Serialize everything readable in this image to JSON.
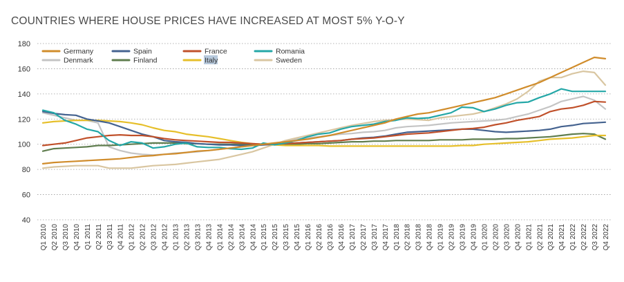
{
  "chart_data": {
    "type": "line",
    "title": "COUNTRIES WHERE HOUSE PRICES HAVE INCREASED AT MOST 5% Y-O-Y",
    "xlabel": "",
    "ylabel": "",
    "ylim": [
      40,
      180
    ],
    "yticks": [
      40,
      60,
      80,
      100,
      120,
      140,
      160,
      180
    ],
    "grid": "horizontal dotted",
    "legend_position": "top-left",
    "categories": [
      "Q1 2010",
      "Q2 2010",
      "Q3 2010",
      "Q4 2010",
      "Q1 2011",
      "Q2 2011",
      "Q3 2011",
      "Q4 2011",
      "Q1 2012",
      "Q2 2012",
      "Q3 2012",
      "Q4 2012",
      "Q1 2013",
      "Q2 2013",
      "Q3 2013",
      "Q4 2013",
      "Q1 2014",
      "Q2 2014",
      "Q3 2014",
      "Q4 2014",
      "Q1 2015",
      "Q2 2015",
      "Q3 2015",
      "Q4 2015",
      "Q1 2016",
      "Q2 2016",
      "Q3 2016",
      "Q4 2016",
      "Q1 2017",
      "Q2 2017",
      "Q3 2017",
      "Q4 2017",
      "Q1 2018",
      "Q2 2018",
      "Q3 2018",
      "Q4 2018",
      "Q1 2019",
      "Q2 2019",
      "Q3 2019",
      "Q4 2019",
      "Q1 2020",
      "Q2 2020",
      "Q3 2020",
      "Q4 2020",
      "Q1 2021",
      "Q2 2021",
      "Q3 2021",
      "Q4 2021",
      "Q1 2022",
      "Q2 2022",
      "Q3 2022",
      "Q4 2022"
    ],
    "series": [
      {
        "name": "Germany",
        "color": "#d08c2b",
        "values": [
          84.5,
          85.5,
          86,
          86.5,
          87,
          87.5,
          88,
          88.5,
          89.5,
          90.5,
          91,
          92,
          92.5,
          93.5,
          94.5,
          95,
          96,
          97,
          98,
          99,
          100,
          101,
          102,
          103,
          104,
          105.5,
          107,
          109,
          111,
          113,
          115,
          117,
          120,
          122,
          124,
          125,
          127,
          129,
          131,
          133,
          135,
          137,
          140,
          143,
          146,
          149,
          153,
          157,
          161,
          165,
          169,
          168
        ]
      },
      {
        "name": "Spain",
        "color": "#44628f",
        "values": [
          126,
          124.5,
          123.5,
          123,
          120,
          118.5,
          117,
          114,
          111,
          108,
          106,
          103,
          102,
          101.5,
          100.5,
          100,
          99.5,
          99.5,
          99,
          99,
          99.5,
          100,
          100.5,
          101,
          101.5,
          102,
          102.5,
          103,
          104,
          105,
          105.5,
          106.5,
          108,
          109.5,
          110,
          110.5,
          111,
          111.5,
          112,
          112,
          111,
          110,
          109.5,
          110,
          110.5,
          111,
          112,
          114,
          115,
          116.5,
          117,
          117.5
        ]
      },
      {
        "name": "France",
        "color": "#c0502a",
        "values": [
          99,
          100,
          101,
          103,
          105,
          106,
          107,
          107.5,
          107,
          107,
          106,
          104.5,
          103.5,
          103,
          102.5,
          102,
          101.5,
          101.5,
          101,
          100.5,
          100,
          100,
          100.5,
          101,
          101.5,
          102,
          102.5,
          103,
          104,
          104.5,
          105,
          106,
          107,
          108,
          108.5,
          109,
          110,
          111,
          112,
          112.5,
          113.5,
          115.5,
          117,
          119,
          120.5,
          122,
          126,
          128,
          129,
          131,
          134,
          133.5
        ]
      },
      {
        "name": "Romania",
        "color": "#24a7a7",
        "values": [
          127,
          125,
          119,
          116,
          112,
          110,
          103,
          99,
          102,
          101,
          97,
          98,
          100,
          101,
          98,
          97.5,
          97.5,
          96.5,
          96,
          97,
          101,
          99.5,
          101,
          103,
          106,
          108,
          109,
          112,
          114,
          115,
          116,
          118,
          119,
          121,
          120.5,
          121,
          123,
          125,
          129.5,
          129,
          126,
          128,
          131,
          133,
          133.5,
          137,
          140,
          144,
          142,
          142,
          142,
          142
        ]
      },
      {
        "name": "Denmark",
        "color": "#c4c4c4",
        "values": [
          125,
          123,
          121,
          119,
          119,
          117,
          98,
          95,
          93,
          92,
          91.5,
          92,
          93,
          93.5,
          94,
          95,
          96,
          97,
          98,
          99,
          100,
          101,
          102,
          104,
          105,
          106,
          107,
          108,
          108.5,
          109.5,
          110,
          111,
          113,
          114,
          114.5,
          115,
          116,
          117,
          117.5,
          118,
          118.5,
          119,
          120,
          122,
          124,
          127,
          130,
          134,
          136,
          138,
          135,
          128
        ]
      },
      {
        "name": "Finland",
        "color": "#5f7d4e",
        "values": [
          94.5,
          96.5,
          97,
          97.5,
          98,
          99,
          99,
          99.5,
          100,
          100.5,
          101,
          101,
          101,
          100.5,
          100.5,
          100,
          100,
          100,
          100,
          100,
          100,
          100,
          100,
          100,
          100.5,
          100.5,
          101,
          101.5,
          102,
          102,
          102.5,
          102.5,
          103,
          103,
          103,
          103,
          103.5,
          103.5,
          103.5,
          104,
          104,
          104,
          104.5,
          104.5,
          105,
          105.5,
          106,
          107,
          108,
          108.5,
          108,
          104
        ]
      },
      {
        "name": "Italy",
        "color": "#e6bf2a",
        "values": [
          117,
          118,
          118.5,
          119,
          119,
          119,
          118.5,
          118,
          117,
          115.5,
          113,
          111,
          110,
          108,
          107,
          106,
          104.5,
          103,
          101.5,
          100.5,
          100,
          99.5,
          99,
          99,
          99,
          99,
          98.5,
          98.5,
          98.5,
          98.5,
          98.5,
          98.5,
          98.5,
          98.5,
          98.5,
          98.5,
          98.5,
          98.5,
          99,
          99,
          100,
          100.5,
          101,
          101.5,
          102,
          103,
          104,
          104.5,
          105,
          106,
          107,
          107
        ]
      },
      {
        "name": "Sweden",
        "color": "#d9c6a1",
        "values": [
          81,
          82,
          82.5,
          83,
          83,
          83,
          81,
          81,
          81,
          82,
          83,
          83.5,
          84,
          85,
          86,
          87,
          88,
          90,
          92,
          94,
          97,
          100,
          103,
          105,
          107,
          109,
          111,
          113,
          115,
          116.5,
          118,
          119,
          119.5,
          120,
          119.5,
          119,
          121,
          122,
          123,
          124,
          126,
          129,
          132,
          136,
          142,
          150,
          153,
          153,
          156,
          158,
          157,
          147
        ]
      }
    ]
  }
}
